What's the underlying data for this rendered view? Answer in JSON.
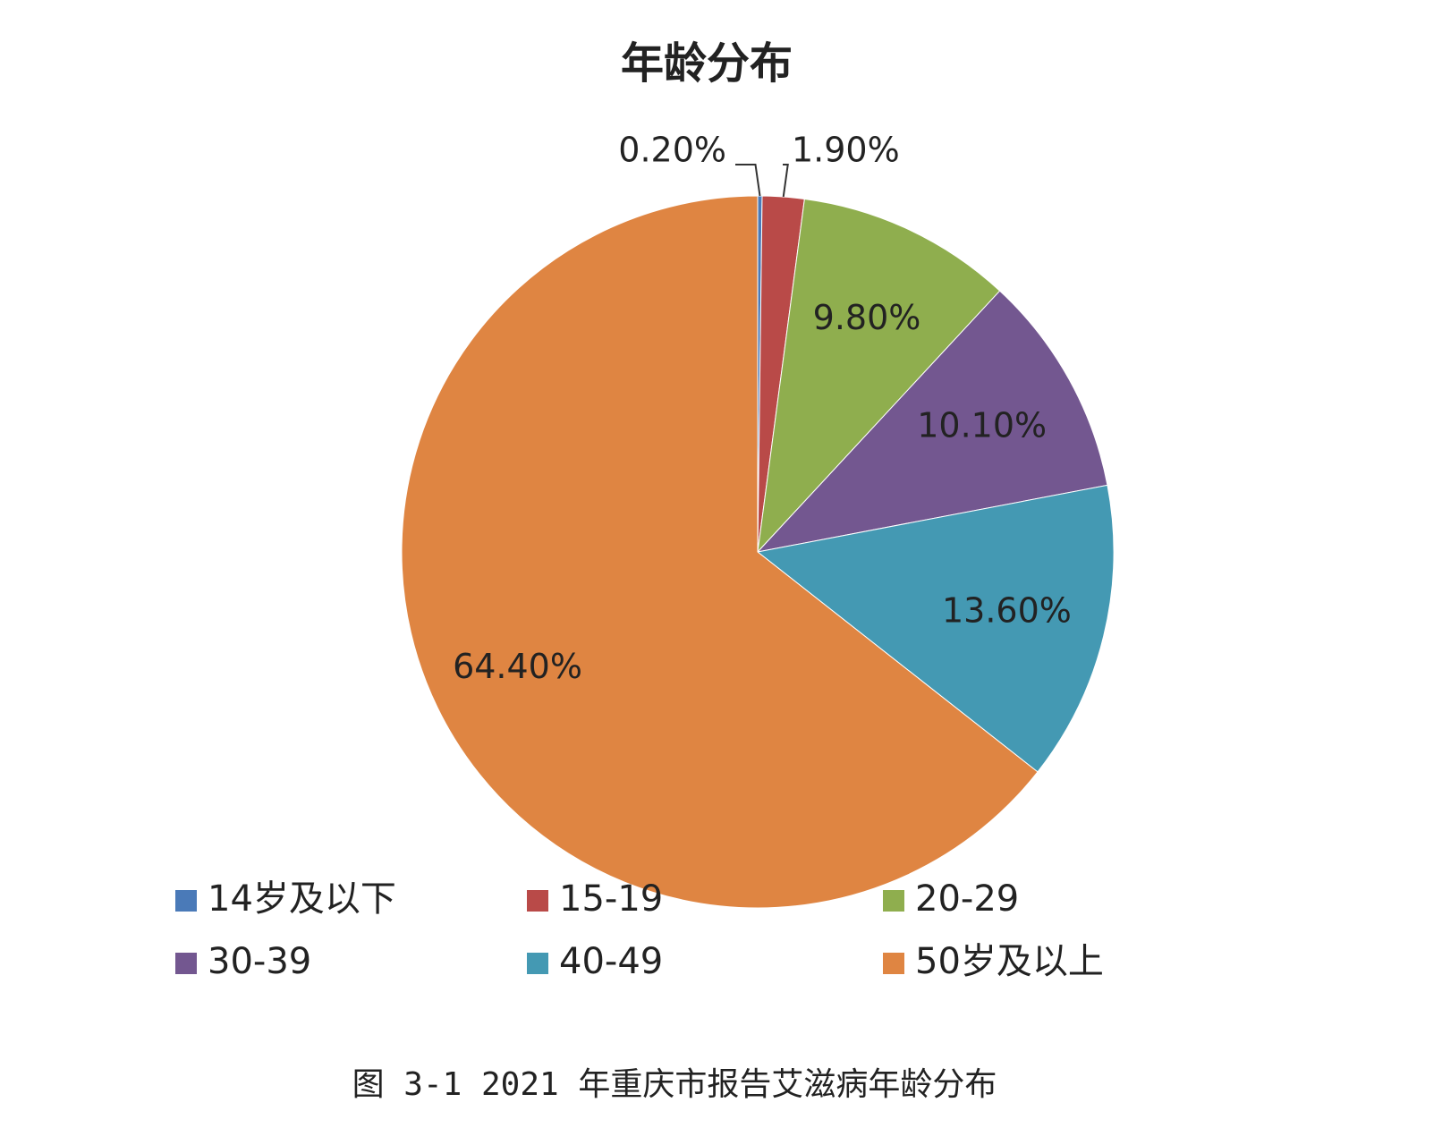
{
  "chart_data": {
    "type": "pie",
    "title": "年龄分布",
    "categories": [
      "14岁及以下",
      "15-19",
      "20-29",
      "30-39",
      "40-49",
      "50岁及以上"
    ],
    "values": [
      0.2,
      1.9,
      9.8,
      10.1,
      13.6,
      64.4
    ],
    "value_labels": [
      "0.20%",
      "1.90%",
      "9.80%",
      "10.10%",
      "13.60%",
      "64.40%"
    ],
    "colors": [
      "#4a7ab8",
      "#b94a48",
      "#8fae4e",
      "#735790",
      "#4499b3",
      "#df8542"
    ],
    "legend": "bottom",
    "caption": "图 3-1 2021 年重庆市报告艾滋病年龄分布"
  }
}
